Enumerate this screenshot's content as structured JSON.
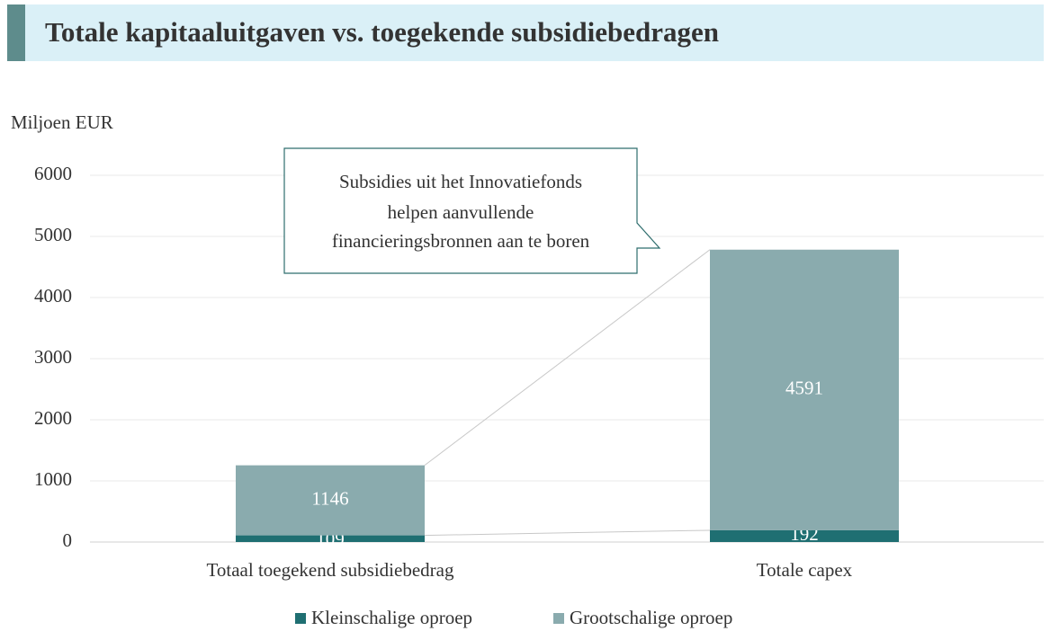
{
  "chart_data": {
    "type": "stacked_bar",
    "title": "Totale kapitaaluitgaven vs. toegekende subsidiebedragen",
    "y_label": "Miljoen EUR",
    "annotation": [
      "Subsidies uit het Innovatiefonds",
      "helpen aanvullende",
      "financieringsbronnen aan te boren"
    ],
    "categories": [
      "Totaal toegekend subsidiebedrag",
      "Totale capex"
    ],
    "series": [
      {
        "name": "Kleinschalige oproep",
        "color": "#1f6f72",
        "values": [
          109,
          192
        ]
      },
      {
        "name": "Grootschalige oproep",
        "color": "#8aabae",
        "values": [
          1146,
          4591
        ]
      }
    ],
    "ylim": [
      0,
      6000
    ],
    "yticks": [
      0,
      1000,
      2000,
      3000,
      4000,
      5000,
      6000
    ],
    "grid": true,
    "legend": "bottom"
  }
}
